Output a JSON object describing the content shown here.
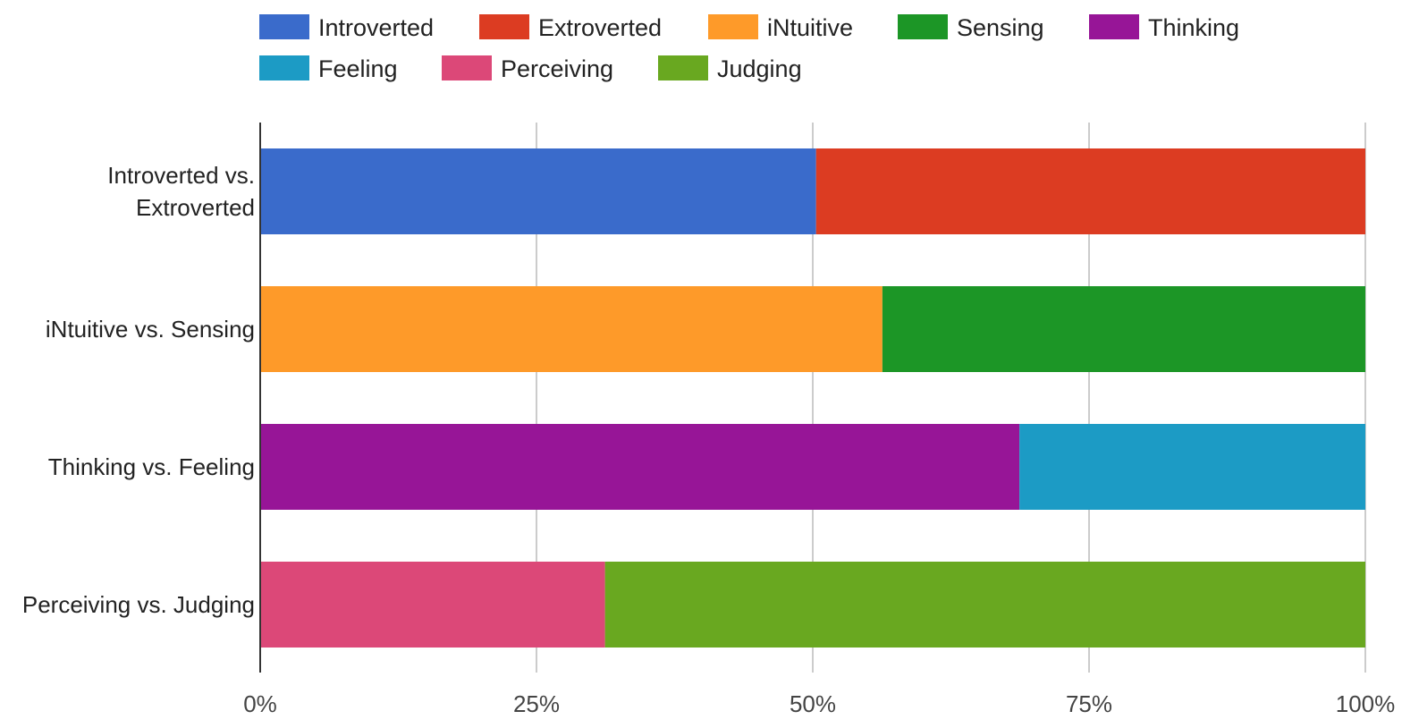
{
  "chart_data": {
    "type": "bar",
    "orientation": "horizontal",
    "stacking": "percent",
    "categories": [
      [
        "Introverted vs.",
        "Extroverted"
      ],
      [
        "iNtuitive vs. Sensing"
      ],
      [
        "Thinking vs. Feeling"
      ],
      [
        "Perceiving vs. Judging"
      ]
    ],
    "series": [
      {
        "name": "Introverted",
        "color": "#3a6bcb",
        "values": [
          50.3,
          null,
          null,
          null
        ]
      },
      {
        "name": "Extroverted",
        "color": "#dc3c22",
        "values": [
          49.7,
          null,
          null,
          null
        ]
      },
      {
        "name": "iNtuitive",
        "color": "#fe9a29",
        "values": [
          null,
          56.3,
          null,
          null
        ]
      },
      {
        "name": "Sensing",
        "color": "#1c9626",
        "values": [
          null,
          43.7,
          null,
          null
        ]
      },
      {
        "name": "Thinking",
        "color": "#971597",
        "values": [
          null,
          null,
          68.7,
          null
        ]
      },
      {
        "name": "Feeling",
        "color": "#1c9bc5",
        "values": [
          null,
          null,
          31.3,
          null
        ]
      },
      {
        "name": "Perceiving",
        "color": "#dc4878",
        "values": [
          null,
          null,
          null,
          31.2
        ]
      },
      {
        "name": "Judging",
        "color": "#69a820",
        "values": [
          null,
          null,
          null,
          68.8
        ]
      }
    ],
    "x_ticks": [
      "0%",
      "25%",
      "50%",
      "75%",
      "100%"
    ],
    "xlim": [
      0,
      100
    ],
    "title": "",
    "xlabel": "",
    "ylabel": "",
    "grid": "vertical",
    "legend_position": "top"
  }
}
